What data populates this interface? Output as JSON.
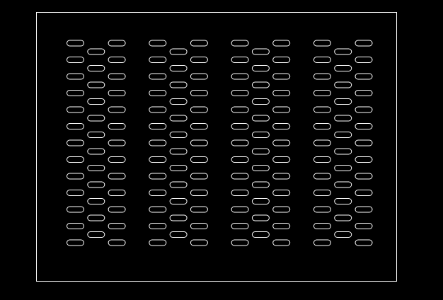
{
  "drawing": {
    "background_color": "#000000",
    "line_color": "#ffffff",
    "slot_groups": 4,
    "outer_column_slots": 13,
    "middle_column_slots": 12
  }
}
